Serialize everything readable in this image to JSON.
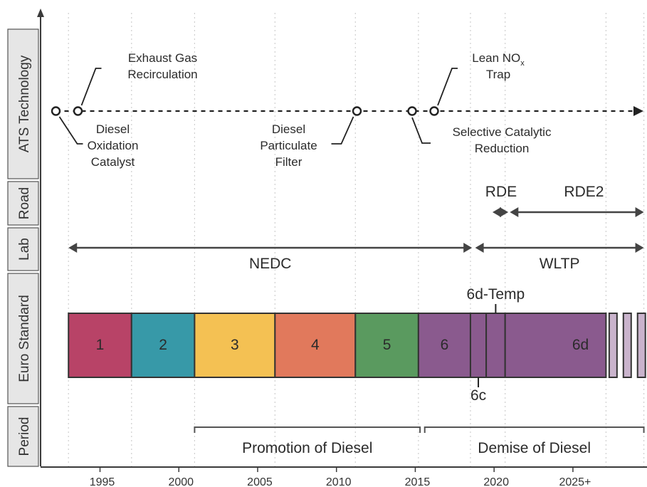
{
  "rows": [
    {
      "id": "ats",
      "label": "ATS Technology"
    },
    {
      "id": "road",
      "label": "Road"
    },
    {
      "id": "lab",
      "label": "Lab"
    },
    {
      "id": "euro",
      "label": "Euro Standard"
    },
    {
      "id": "period",
      "label": "Period"
    }
  ],
  "axis": {
    "year_min": 1991.5,
    "year_max": 2029.7,
    "ticks": [
      "1995",
      "2000",
      "2005",
      "2010",
      "2015",
      "2020",
      "2025+"
    ],
    "tick_years": [
      1995,
      2000,
      2005,
      2010,
      2015,
      2020,
      2025
    ]
  },
  "ats": {
    "nodes": [
      {
        "year": 1992.2,
        "label": [
          "Diesel",
          "Oxidation",
          "Catalyst"
        ],
        "side": "below"
      },
      {
        "year": 1993.6,
        "label": [
          "Exhaust Gas",
          "Recirculation"
        ],
        "side": "above"
      },
      {
        "year": 2011.3,
        "label": [
          "Diesel",
          "Particulate",
          "Filter"
        ],
        "side": "below"
      },
      {
        "year": 2014.8,
        "label": [
          "Selective Catalytic",
          "Reduction"
        ],
        "side": "below"
      },
      {
        "year": 2016.2,
        "label": [
          "Lean NO",
          "Trap"
        ],
        "side": "above",
        "subscript": "x"
      }
    ]
  },
  "road": {
    "spans": [
      {
        "label": "RDE",
        "start": 2019.9,
        "end": 2020.9
      },
      {
        "label": "RDE2",
        "start": 2021.0,
        "end": 2029.5
      }
    ]
  },
  "lab": {
    "spans": [
      {
        "label": "NEDC",
        "start": 1993.0,
        "end": 2018.6
      },
      {
        "label": "WLTP",
        "start": 2018.8,
        "end": 2029.5
      }
    ]
  },
  "euro": {
    "stages": [
      {
        "label": "1",
        "start": 1993.0,
        "end": 1997.0,
        "color": "#b84367"
      },
      {
        "label": "2",
        "start": 1997.0,
        "end": 2001.0,
        "color": "#3799a8"
      },
      {
        "label": "3",
        "start": 2001.0,
        "end": 2006.1,
        "color": "#f4c153"
      },
      {
        "label": "4",
        "start": 2006.1,
        "end": 2011.2,
        "color": "#e1795c"
      },
      {
        "label": "5",
        "start": 2011.2,
        "end": 2015.2,
        "color": "#5a9a5f"
      },
      {
        "label": "6",
        "start": 2015.2,
        "end": 2018.5,
        "color": "#8a5a8e"
      },
      {
        "label": "",
        "start": 2018.5,
        "end": 2019.5,
        "color": "#8a5a8e"
      },
      {
        "label": "",
        "start": 2019.5,
        "end": 2020.7,
        "color": "#8a5a8e"
      },
      {
        "label": "6d",
        "start": 2020.7,
        "end": 2027.1,
        "color": "#8a5a8e"
      }
    ],
    "future_color": "#c9b3cc",
    "future": [
      2027.3,
      2028.2,
      2029.1
    ],
    "sub_labels": {
      "temp": "6d-Temp",
      "c": "6c"
    }
  },
  "period": {
    "spans": [
      {
        "label": "Promotion of Diesel",
        "start": 2001.0,
        "end": 2015.3
      },
      {
        "label": "Demise of Diesel",
        "start": 2015.6,
        "end": 2029.5
      }
    ]
  }
}
